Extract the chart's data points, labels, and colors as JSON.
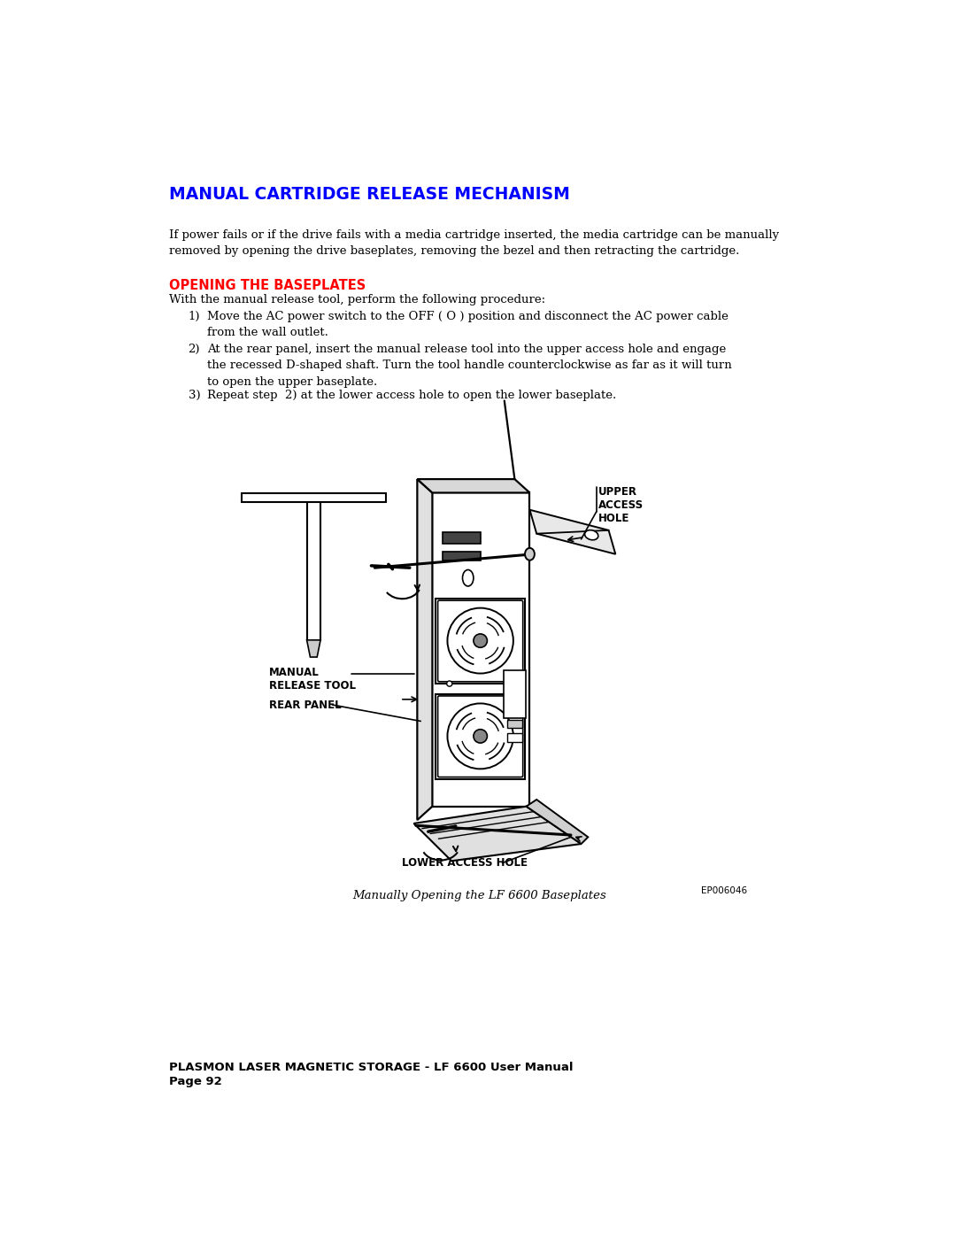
{
  "title": "MANUAL CARTRIDGE RELEASE MECHANISM",
  "title_color": "#0000FF",
  "title_fontsize": 13.5,
  "section_heading": "OPENING THE BASEPLATES",
  "section_heading_color": "#FF0000",
  "section_heading_fontsize": 10.5,
  "body_text_intro": "If power fails or if the drive fails with a media cartridge inserted, the media cartridge can be manually\nremoved by opening the drive baseplates, removing the bezel and then retracting the cartridge.",
  "body_text_section": "With the manual release tool, perform the following procedure:",
  "step1": "Move the AC power switch to the OFF ( O ) position and disconnect the AC power cable\nfrom the wall outlet.",
  "step2": "At the rear panel, insert the manual release tool into the upper access hole and engage\nthe recessed D-shaped shaft. Turn the tool handle counterclockwise as far as it will turn\nto open the upper baseplate.",
  "step3": "Repeat step  2) at the lower access hole to open the lower baseplate.",
  "caption": "Manually Opening the LF 6600 Baseplates",
  "ep_code": "EP006046",
  "footer_line1": "PLASMON LASER MAGNETIC STORAGE - LF 6600 User Manual",
  "footer_line2": "Page 92",
  "background_color": "#FFFFFF",
  "text_color": "#000000",
  "body_fontsize": 9.5,
  "footer_fontsize": 9.5,
  "caption_fontsize": 9.5,
  "label_upper": "UPPER\nACCESS\nHOLE",
  "label_lower": "LOWER ACCESS HOLE",
  "label_manual": "MANUAL\nRELEASE TOOL",
  "label_rear": "REAR PANEL"
}
